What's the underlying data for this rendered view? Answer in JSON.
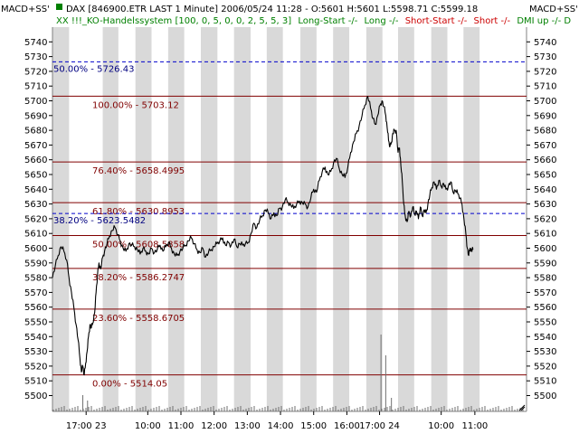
{
  "window": {
    "corner_left": "MACD+SS'",
    "corner_right": "MACD+SS'",
    "title_line": "DAX [846900.ETR LAST 1 Minute] 2006/05/24 11:28 - O:5601 H:5601 L:5598.71 C:5599.18",
    "system_line": {
      "prefix": "XX !!!_KO-Handelssystem [100, 0, 5, 0, 0, 2, 5, 5, 3]",
      "long_start": "Long-Start -/-",
      "long": "Long -/-",
      "short_start": "Short-Start -/-",
      "short": "Short -/-",
      "dmi": "DMI up -/-  D"
    }
  },
  "colors": {
    "background": "#ffffff",
    "alt_band": "#d9d9d9",
    "price_line": "#000000",
    "fib_line": "#800000",
    "fib_text": "#800000",
    "blue_line": "#0000cc",
    "blue_text": "#000080",
    "green_text": "#008000",
    "red_text": "#cc0000"
  },
  "chart_data": {
    "type": "line",
    "title": "DAX [846900.ETR LAST 1 Minute] 2006/05/24 11:28 - O:5601 H:5601 L:5598.71 C:5599.18",
    "ylim": [
      5495,
      5745
    ],
    "y_ticks": [
      5500,
      5510,
      5520,
      5530,
      5540,
      5550,
      5560,
      5570,
      5580,
      5590,
      5600,
      5610,
      5620,
      5630,
      5640,
      5650,
      5660,
      5670,
      5680,
      5690,
      5700,
      5710,
      5720,
      5730,
      5740
    ],
    "x_range": [
      0,
      100
    ],
    "x_ticks": [
      {
        "label": "17:00 23",
        "x": 7.1
      },
      {
        "label": "10:00",
        "x": 20.1
      },
      {
        "label": "11:00",
        "x": 27.1
      },
      {
        "label": "12:00",
        "x": 34.1
      },
      {
        "label": "13:00",
        "x": 41.1
      },
      {
        "label": "14:00",
        "x": 48.1
      },
      {
        "label": "15:00",
        "x": 55.1
      },
      {
        "label": "16:00",
        "x": 62.1
      },
      {
        "label": "17:00 24",
        "x": 69.0
      },
      {
        "label": "10:00",
        "x": 82.0
      },
      {
        "label": "11:00",
        "x": 89.1
      }
    ],
    "bands": [
      [
        0,
        3.5
      ],
      [
        10.6,
        13.9
      ],
      [
        17.5,
        20.9
      ],
      [
        24.4,
        27.8
      ],
      [
        31.3,
        34.8
      ],
      [
        38.3,
        41.8
      ],
      [
        45.2,
        48.6
      ],
      [
        52.3,
        55.7
      ],
      [
        59.2,
        62.6
      ],
      [
        66.2,
        69.6
      ],
      [
        72.9,
        76.3
      ],
      [
        79.9,
        83.3
      ],
      [
        86.7,
        90.1
      ]
    ],
    "fib_levels": [
      {
        "label": "100.00% - 5703.12",
        "value": 5703.12
      },
      {
        "label": "76.40% - 5658.4995",
        "value": 5658.4995
      },
      {
        "label": "61.80% - 5630.8953",
        "value": 5630.8953
      },
      {
        "label": "50.00% - 5608.5858",
        "value": 5608.5858
      },
      {
        "label": "38.20% - 5586.2747",
        "value": 5586.2747
      },
      {
        "label": "23.60% - 5558.6705",
        "value": 5558.6705
      },
      {
        "label": "0.00% - 5514.05",
        "value": 5514.05
      }
    ],
    "blue_levels": [
      {
        "label": "50.00% - 5726.43",
        "value": 5726.43
      },
      {
        "label": "38.20% - 5623.5482",
        "value": 5623.5482
      }
    ],
    "series": [
      {
        "points": [
          [
            0,
            5580
          ],
          [
            0.6,
            5588
          ],
          [
            1.2,
            5595
          ],
          [
            1.8,
            5601
          ],
          [
            2.4,
            5598
          ],
          [
            3.0,
            5592
          ],
          [
            3.5,
            5580
          ],
          [
            4.0,
            5570
          ],
          [
            4.5,
            5560
          ],
          [
            5.0,
            5548
          ],
          [
            5.4,
            5538
          ],
          [
            5.8,
            5525
          ],
          [
            6.1,
            5516
          ],
          [
            6.4,
            5520
          ],
          [
            6.7,
            5514
          ],
          [
            7.0,
            5522
          ],
          [
            7.3,
            5530
          ],
          [
            7.6,
            5540
          ],
          [
            7.9,
            5548
          ],
          [
            8.2,
            5546
          ],
          [
            8.5,
            5549
          ],
          [
            8.9,
            5556
          ],
          [
            9.2,
            5570
          ],
          [
            9.5,
            5582
          ],
          [
            9.8,
            5590
          ],
          [
            10.2,
            5586
          ],
          [
            10.6,
            5594
          ],
          [
            11.0,
            5598
          ],
          [
            11.5,
            5603
          ],
          [
            12.0,
            5608
          ],
          [
            12.6,
            5612
          ],
          [
            13.2,
            5614
          ],
          [
            13.8,
            5609
          ],
          [
            14.3,
            5605
          ],
          [
            14.9,
            5600
          ],
          [
            15.5,
            5598
          ],
          [
            16.1,
            5603
          ],
          [
            16.7,
            5602
          ],
          [
            17.3,
            5601
          ],
          [
            17.9,
            5599
          ],
          [
            18.5,
            5596
          ],
          [
            19.1,
            5600
          ],
          [
            19.7,
            5598
          ],
          [
            20.3,
            5596
          ],
          [
            20.9,
            5600
          ],
          [
            21.5,
            5597
          ],
          [
            22.1,
            5599
          ],
          [
            22.7,
            5602
          ],
          [
            23.3,
            5598
          ],
          [
            23.9,
            5601
          ],
          [
            24.5,
            5604
          ],
          [
            25.1,
            5600
          ],
          [
            25.7,
            5596
          ],
          [
            26.3,
            5595
          ],
          [
            26.9,
            5598
          ],
          [
            27.5,
            5600
          ],
          [
            28.1,
            5602
          ],
          [
            28.7,
            5605
          ],
          [
            29.3,
            5607
          ],
          [
            29.9,
            5603
          ],
          [
            30.5,
            5599
          ],
          [
            31.1,
            5597
          ],
          [
            31.7,
            5600
          ],
          [
            32.3,
            5594
          ],
          [
            32.9,
            5597
          ],
          [
            33.5,
            5599
          ],
          [
            34.1,
            5601
          ],
          [
            34.7,
            5603
          ],
          [
            35.3,
            5605
          ],
          [
            35.9,
            5607
          ],
          [
            36.5,
            5602
          ],
          [
            37.1,
            5604
          ],
          [
            37.7,
            5602
          ],
          [
            38.3,
            5606
          ],
          [
            38.9,
            5601
          ],
          [
            39.5,
            5603
          ],
          [
            40.1,
            5602
          ],
          [
            40.7,
            5603
          ],
          [
            41.3,
            5604
          ],
          [
            41.9,
            5610
          ],
          [
            42.5,
            5617
          ],
          [
            43.1,
            5614
          ],
          [
            43.7,
            5619
          ],
          [
            44.3,
            5622
          ],
          [
            44.9,
            5626
          ],
          [
            45.5,
            5624
          ],
          [
            46.1,
            5620
          ],
          [
            46.7,
            5624
          ],
          [
            47.3,
            5622
          ],
          [
            47.9,
            5627
          ],
          [
            48.5,
            5628
          ],
          [
            49.1,
            5633
          ],
          [
            49.7,
            5631
          ],
          [
            50.3,
            5629
          ],
          [
            50.9,
            5627
          ],
          [
            51.5,
            5630
          ],
          [
            52.1,
            5632
          ],
          [
            52.7,
            5631
          ],
          [
            53.3,
            5630
          ],
          [
            53.9,
            5628
          ],
          [
            54.5,
            5634
          ],
          [
            55.1,
            5640
          ],
          [
            55.7,
            5638
          ],
          [
            56.3,
            5646
          ],
          [
            56.9,
            5652
          ],
          [
            57.5,
            5655
          ],
          [
            58.1,
            5650
          ],
          [
            58.7,
            5652
          ],
          [
            59.3,
            5658
          ],
          [
            59.9,
            5661
          ],
          [
            60.5,
            5654
          ],
          [
            61.1,
            5650
          ],
          [
            61.7,
            5648
          ],
          [
            62.3,
            5655
          ],
          [
            62.9,
            5665
          ],
          [
            63.5,
            5672
          ],
          [
            64.1,
            5678
          ],
          [
            64.7,
            5683
          ],
          [
            65.3,
            5690
          ],
          [
            65.9,
            5697
          ],
          [
            66.5,
            5703
          ],
          [
            67.1,
            5695
          ],
          [
            67.6,
            5688
          ],
          [
            68.1,
            5684
          ],
          [
            68.6,
            5690
          ],
          [
            69.1,
            5697
          ],
          [
            69.5,
            5700
          ],
          [
            69.9,
            5696
          ],
          [
            70.3,
            5690
          ],
          [
            70.6,
            5682
          ],
          [
            70.9,
            5673
          ],
          [
            71.2,
            5669
          ],
          [
            71.5,
            5672
          ],
          [
            71.8,
            5678
          ],
          [
            72.1,
            5680
          ],
          [
            72.5,
            5680
          ],
          [
            72.9,
            5665
          ],
          [
            73.2,
            5668
          ],
          [
            73.5,
            5656
          ],
          [
            73.8,
            5645
          ],
          [
            74.1,
            5630
          ],
          [
            74.4,
            5622
          ],
          [
            74.8,
            5618
          ],
          [
            75.2,
            5625
          ],
          [
            75.6,
            5622
          ],
          [
            76.0,
            5628
          ],
          [
            76.4,
            5623
          ],
          [
            76.8,
            5625
          ],
          [
            77.2,
            5620
          ],
          [
            77.6,
            5628
          ],
          [
            78.0,
            5622
          ],
          [
            78.4,
            5626
          ],
          [
            78.8,
            5624
          ],
          [
            79.2,
            5630
          ],
          [
            79.6,
            5636
          ],
          [
            80.0,
            5641
          ],
          [
            80.5,
            5645
          ],
          [
            81.0,
            5640
          ],
          [
            81.5,
            5646
          ],
          [
            82.0,
            5642
          ],
          [
            82.5,
            5644
          ],
          [
            83.0,
            5640
          ],
          [
            83.5,
            5642
          ],
          [
            84.0,
            5645
          ],
          [
            84.5,
            5638
          ],
          [
            85.0,
            5639
          ],
          [
            85.5,
            5637
          ],
          [
            86.0,
            5634
          ],
          [
            86.4,
            5630
          ],
          [
            86.8,
            5620
          ],
          [
            87.2,
            5610
          ],
          [
            87.5,
            5600
          ],
          [
            87.8,
            5595
          ],
          [
            88.1,
            5600
          ],
          [
            88.4,
            5598
          ],
          [
            88.7,
            5599
          ]
        ]
      }
    ],
    "volume_spikes": [
      {
        "x": 6.4,
        "v": 0.18
      },
      {
        "x": 7.4,
        "v": 0.12
      },
      {
        "x": 69.3,
        "v": 0.85
      },
      {
        "x": 70.3,
        "v": 0.62
      },
      {
        "x": 71.5,
        "v": 0.15
      }
    ]
  }
}
